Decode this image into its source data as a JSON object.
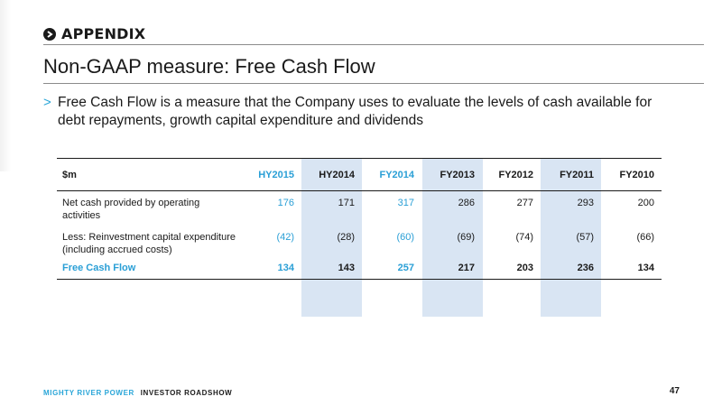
{
  "section": {
    "title": "APPENDIX",
    "icon": "chevron-right-icon"
  },
  "page_title": "Non-GAAP measure: Free Cash Flow",
  "bullets": [
    "Free Cash Flow is a measure that the Company uses to evaluate the levels of cash available for debt repayments, growth capital expenditure and dividends"
  ],
  "bullet_marker": ">",
  "table": {
    "unit_label": "$m",
    "columns": [
      "HY2015",
      "HY2014",
      "FY2014",
      "FY2013",
      "FY2012",
      "FY2011",
      "FY2010"
    ],
    "highlighted_columns": [
      "HY2014",
      "FY2013",
      "FY2011"
    ],
    "accent_columns": [
      "HY2015",
      "FY2014"
    ],
    "rows": [
      {
        "label": "Net cash provided by operating activities",
        "values": [
          "176",
          "171",
          "317",
          "286",
          "277",
          "293",
          "200"
        ]
      },
      {
        "label": "Less: Reinvestment capital expenditure (including accrued costs)",
        "values": [
          "(42)",
          "(28)",
          "(60)",
          "(69)",
          "(74)",
          "(57)",
          "(66)"
        ]
      }
    ],
    "total": {
      "label": "Free Cash Flow",
      "values": [
        "134",
        "143",
        "257",
        "217",
        "203",
        "236",
        "134"
      ]
    }
  },
  "footer": {
    "brand": "MIGHTY RIVER POWER",
    "event": "INVESTOR ROADSHOW",
    "page_number": "47"
  },
  "colors": {
    "accent": "#2aa6d8",
    "highlight": "#d9e5f3",
    "text": "#1a1a1a"
  }
}
